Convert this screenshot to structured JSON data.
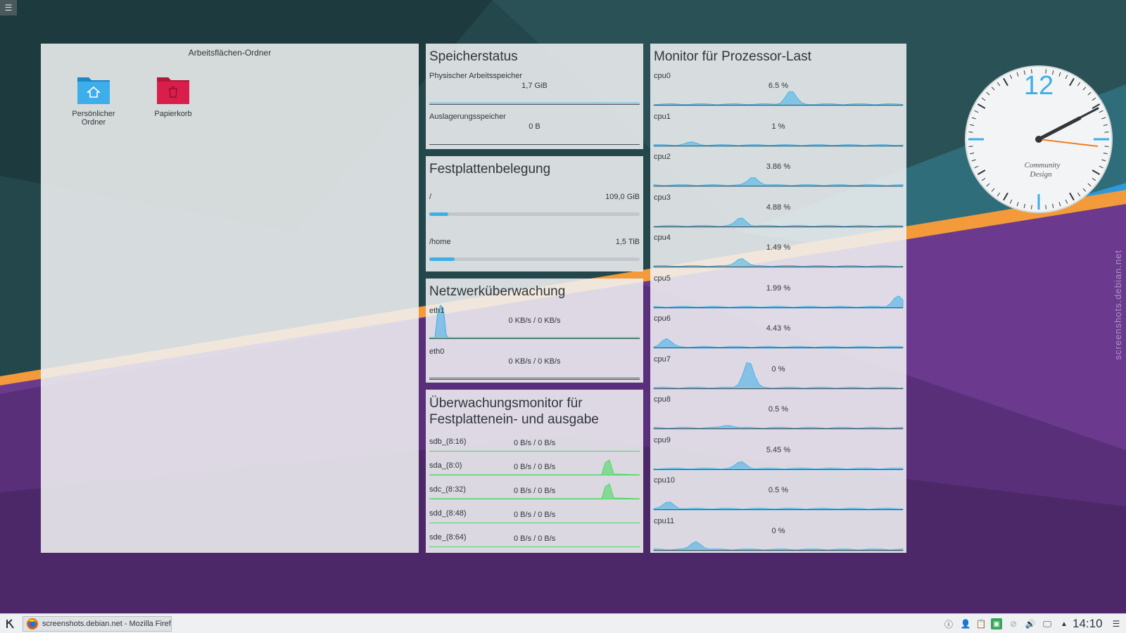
{
  "desktop": {
    "folder_view": {
      "title": "Arbeitsflächen-Ordner",
      "icons": [
        {
          "label": "Persönlicher Ordner",
          "icon": "home-folder-icon"
        },
        {
          "label": "Papierkorb",
          "icon": "trash-icon"
        }
      ]
    },
    "memory": {
      "title": "Speicherstatus",
      "physical": {
        "label": "Physischer Arbeitsspeicher",
        "value": "1,7 GiB"
      },
      "swap": {
        "label": "Auslagerungsspeicher",
        "value": "0 B"
      }
    },
    "disk_usage": {
      "title": "Festplattenbelegung",
      "items": [
        {
          "label": "/",
          "value": "109,0 GiB",
          "fill_fraction": 0.09
        },
        {
          "label": "/home",
          "value": "1,5 TiB",
          "fill_fraction": 0.12
        }
      ]
    },
    "network": {
      "title": "Netzwerküberwachung",
      "interfaces": [
        {
          "label": "eth1",
          "value": "0 KB/s / 0 KB/s"
        },
        {
          "label": "eth0",
          "value": "0 KB/s / 0 KB/s"
        }
      ]
    },
    "disk_io": {
      "title_line1": "Überwachungsmonitor für",
      "title_line2": "Festplattenein- und ausgabe",
      "devices": [
        {
          "label": "sdb_(8:16)",
          "value": "0 B/s / 0 B/s"
        },
        {
          "label": "sda_(8:0)",
          "value": "0 B/s / 0 B/s"
        },
        {
          "label": "sdc_(8:32)",
          "value": "0 B/s / 0 B/s"
        },
        {
          "label": "sdd_(8:48)",
          "value": "0 B/s / 0 B/s"
        },
        {
          "label": "sde_(8:64)",
          "value": "0 B/s / 0 B/s"
        }
      ]
    },
    "cpu_monitor": {
      "title": "Monitor für Prozessor-Last",
      "cpus": [
        {
          "label": "cpu0",
          "value": "6.5 %"
        },
        {
          "label": "cpu1",
          "value": "1 %"
        },
        {
          "label": "cpu2",
          "value": "3.86 %"
        },
        {
          "label": "cpu3",
          "value": "4.88 %"
        },
        {
          "label": "cpu4",
          "value": "1.49 %"
        },
        {
          "label": "cpu5",
          "value": "1.99 %"
        },
        {
          "label": "cpu6",
          "value": "4.43 %"
        },
        {
          "label": "cpu7",
          "value": "0 %"
        },
        {
          "label": "cpu8",
          "value": "0.5 %"
        },
        {
          "label": "cpu9",
          "value": "5.45 %"
        },
        {
          "label": "cpu10",
          "value": "0.5 %"
        },
        {
          "label": "cpu11",
          "value": "0 %"
        }
      ]
    },
    "clock_widget": {
      "numeral": "12",
      "brand_line1": "Community",
      "brand_line2": "Design"
    },
    "watermark": "screenshots.debian.net"
  },
  "taskbar": {
    "launcher_icon": "kde-logo-icon",
    "task": {
      "label": "screenshots.debian.net - Mozilla Firef",
      "icon": "firefox-icon"
    },
    "tray": [
      "info-icon",
      "user-icon",
      "clipboard-icon",
      "updates-icon",
      "network-icon",
      "volume-icon",
      "display-icon",
      "expand-tray-icon"
    ],
    "time": "14:10",
    "menu_icon": "hamburger-menu-icon"
  },
  "colors": {
    "accent": "#3daee9",
    "io_green": "#4cd964",
    "panel_bg": "#eff0f1",
    "clock_hand_orange": "#f47b20"
  }
}
